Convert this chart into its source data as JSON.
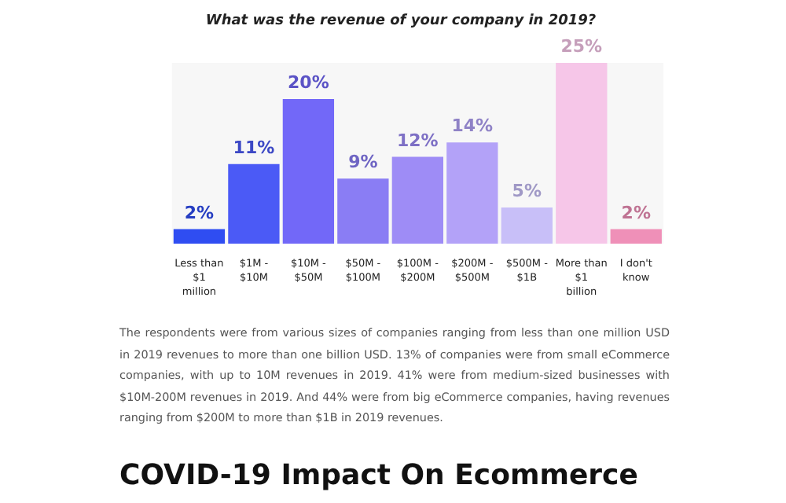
{
  "chart_data": {
    "type": "bar",
    "title": "What was the revenue of your company in 2019?",
    "categories": [
      "Less than $1 million",
      "$1M - $10M",
      "$10M - $50M",
      "$50M - $100M",
      "$100M - $200M",
      "$200M - $500M",
      "$500M - $1B",
      "More than $1 billion",
      "I don't know"
    ],
    "values": [
      2,
      11,
      20,
      9,
      12,
      14,
      5,
      25,
      2
    ],
    "value_labels": [
      "2%",
      "11%",
      "20%",
      "9%",
      "12%",
      "14%",
      "5%",
      "25%",
      "2%"
    ],
    "colors": [
      "#2f4df2",
      "#4b5af6",
      "#7268f8",
      "#8a7df4",
      "#9e8cf6",
      "#b3a2f8",
      "#c8bff8",
      "#f6c6e8",
      "#ef90b8"
    ],
    "tick_labels": "x",
    "annotations": [
      "The respondents were from various sizes of companies ranging from less than one million USD in 2019 revenues to more than one billion USD. 13% of companies were from small eCommerce companies, with up to 10M revenues in 2019. 41% were from medium-sized businesses with $10M-200M revenues in 2019. And 44% were from big eCommerce companies, having revenues ranging from $200M to more than $1B in 2019 revenues.",
      "COVID-19 Impact On Ecommerce"
    ]
  }
}
